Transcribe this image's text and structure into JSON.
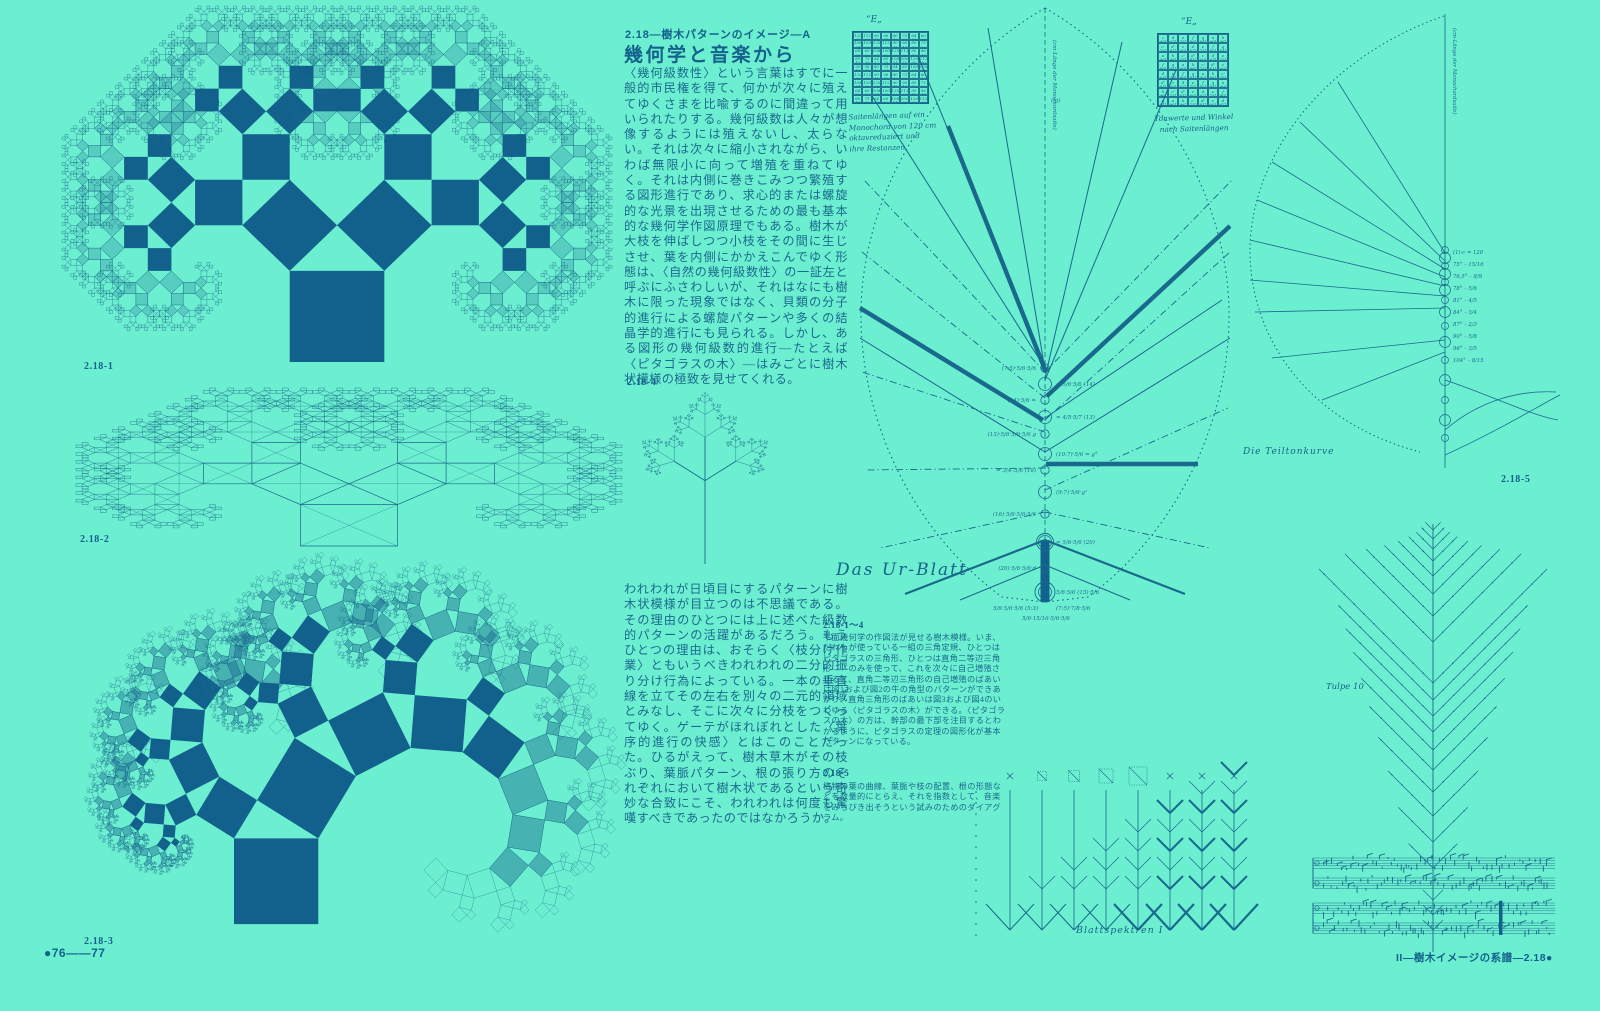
{
  "colors": {
    "paper": "#6cefd0",
    "ink": "#19698d",
    "ink_strong": "#12618c"
  },
  "page": {
    "folio_left": "●76——77",
    "folio_right": "II—樹木イメージの系譜—2.18●"
  },
  "article": {
    "kicker": "2.18—樹木パターンのイメージ—A",
    "title": "幾何学と音楽から",
    "para1": "〈幾何級数性〉という言葉はすでに一般的市民権を得て、何かが次々に殖えてゆくさまを比喩するのに間違って用いられたりする。幾何級数は人々が想像するようには殖えないし、太らない。それは次々に縮小されながら、いわば無限小に向って増殖を重ねてゆく。それは内側に巻きこみつつ繁殖する図形進行であり、求心的または螺旋的な光景を出現させるための最も基本的な幾何学作図原理でもある。樹木が大枝を伸ばしつつ小枝をその間に生じさせ、葉を内側にかかえこんでゆく形態は、〈自然の幾何級数性〉の一証左と呼ぶにふさわしいが、それはなにも樹木に限った現象ではなく、貝類の分子的進行による螺旋パターンや多くの結晶学的進行にも見られる。しかし、ある図形の幾何級数的進行—たとえば〈ピタゴラスの木〉—はみごとに樹木状模様の極致を見せてくれる。",
    "para2": "われわれが日頃目にするパターンに樹木状模様が目立つのは不思議である。その理由のひとつには上に述べた級数的パターンの活躍があるだろう。もうひとつの理由は、おそらく〈枝分け作業〉ともいうべきわれわれの二分的振り分け行為によっている。一本の垂直線を立てその左右を別々の二元的領域とみなし、そこに次々に分枝をつくってゆく。ゲーテがほれぼれとした〈葉序的進行の快感〉とはこのことだった。ひるがえって、樹木草木がその枝ぶり、葉脈パターン、根の張り方のそれぞれにおいて樹木状であるという奇妙な合致にこそ、われわれは何度も驚嘆すべきであったのではなかろうか。"
  },
  "figures": {
    "fig1_label": "2.18-1",
    "fig2_label": "2.18-2",
    "fig3_label": "2.18-3",
    "fig4_label": "2.18-4",
    "fig5_label": "2.18-5"
  },
  "captions": {
    "c1_head": "2.18-1～4",
    "c1_body": "平面幾何学の作図法が見せる樹木模様。いま、だれもが使っている一組の三角定規、ひとつはピタゴラスの三角形、ひとつは直角二等辺三角形——のみを使って、これを次々に自己増殖させると、直角二等辺三角形の自己増殖のばあいは図1および図2の牛の角型のパターンができあがり、直角三角形のばあいは図3および図4のいわゆる〈ピタゴラスの木〉ができる。〈ピタゴラスの木〉の方は、幹部の最下部を注目するとわかるように、ピタゴラスの定理の図形化が基本パターンになっている。",
    "c2_head": "2.18-5",
    "c2_body": "植物の葉の曲線、葉脈や枝の配置、根の形態などを数量的にとらえ、それを指数として、音楽をみちびき出そうという試みのためのダイアグラム。"
  },
  "leaf_diagram": {
    "title": "Das Ur-Blatt",
    "caption_left": "“E„",
    "caption_right": "“E„",
    "notes_left": "Saitenlängen auf ein\nMonochord von 120 cm\noktavreduziert und\nihre Restanzen",
    "notes_right": "Tonwerte und Winkel\nnach Saitenlängen",
    "axis_label": "(cm-Länge der Monochordsaite)",
    "tip_note": "(m)",
    "axis_notes": [
      "(7:5)·5/6·5/6",
      "= 5/6·5/6 (14)",
      "(14)·5/6 =",
      "= 4/5·5/7 (13)",
      "(13)·5/6·5/6·5/6 g",
      "(10:7)·5/6 = g°",
      "= 3/4–5/6 (16)",
      "(9:7)·5/6·g¹",
      "(16)·5/6·5/6·5/6",
      "= 5/6·5/6 (20)",
      "(20)·5/6·5/6·d",
      "5/6·5/6 (15)·5/6"
    ],
    "bottom_notes": [
      "5/6·5/6·5/6 (5:3)",
      "(7:5)·7/8·5/6",
      "5/6·15/16·5/6·5/6"
    ],
    "cell_marks_left": [
      "120\n60",
      "112,5\n60",
      "90\n45",
      "96\n48",
      "80\n40",
      "75\n30",
      "64\n32",
      "60\n30",
      "108\n54",
      "100\n50"
    ],
    "cell_marks_right": [
      "c\n60°",
      "d\n67°",
      "e\n75°",
      "f\n80°",
      "g\n84°",
      "a\n90°",
      "h\n96°",
      "c'\n75°",
      "d'\n81°"
    ]
  },
  "teilton": {
    "title": "Die Teiltonkurve",
    "axis_label": "(cm-Länge der Monochordsaite)",
    "axis_notes": [
      "(1)·c = 120",
      "75° – 15/16",
      "76,5° – 8/9",
      "78° – 5/6",
      "81° – 4/5",
      "84° – 3/4",
      "87° – 2/3",
      "90° – 5/8",
      "96° – 3/5",
      "104° – 8/15"
    ]
  },
  "tulpe": {
    "label": "Tulpe 10"
  },
  "blatt": {
    "label": "Blattspektren I"
  }
}
